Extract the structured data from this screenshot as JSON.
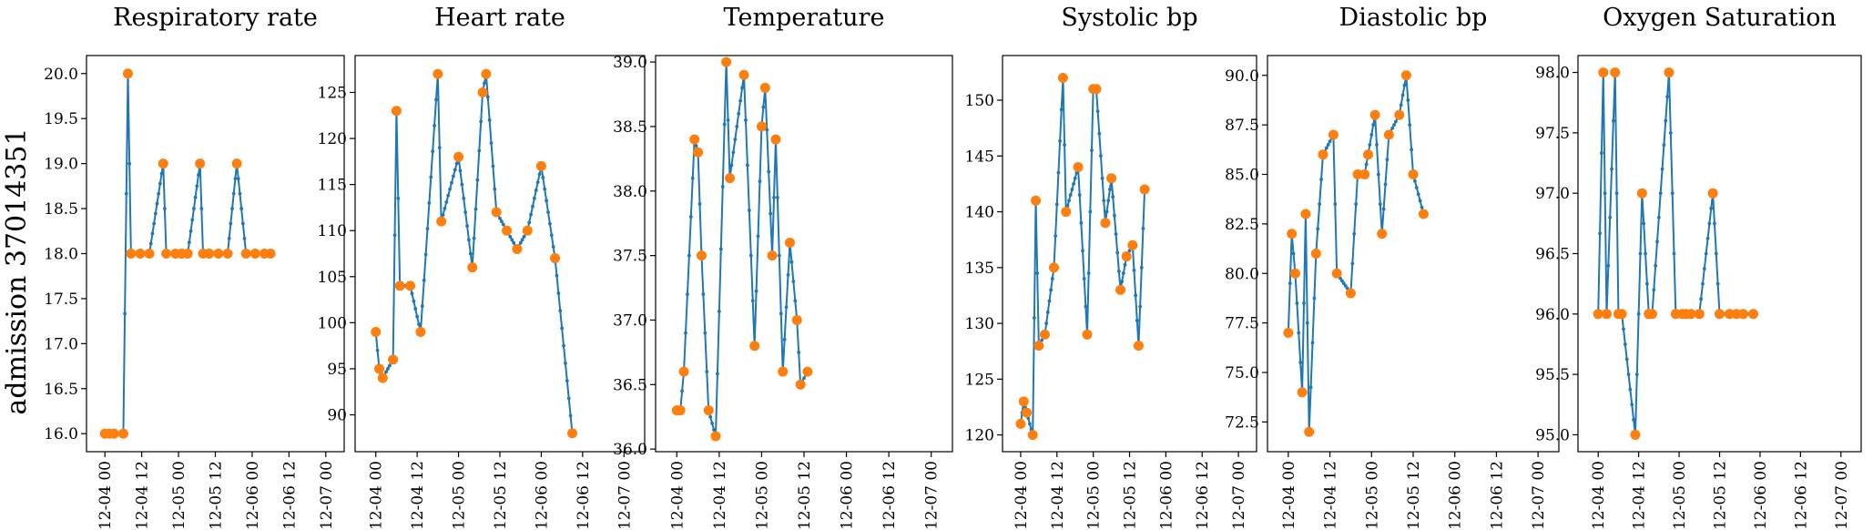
{
  "figure": {
    "row_label": "admission 37014351",
    "colors": {
      "line": "#1f77b4",
      "observed": "#ff7f0e"
    }
  },
  "chart_data": [
    {
      "type": "line",
      "title": "Respiratory rate",
      "x_unit": "hours since 12-04 00",
      "xlim": [
        -6,
        78
      ],
      "x_ticks": [
        0,
        12,
        24,
        36,
        48,
        60,
        72
      ],
      "x_tick_labels": [
        "12-04 00",
        "12-04 12",
        "12-05 00",
        "12-05 12",
        "12-06 00",
        "12-06 12",
        "12-07 00"
      ],
      "ylim": [
        15.8,
        20.2
      ],
      "y_ticks": [
        16.0,
        16.5,
        17.0,
        17.5,
        18.0,
        18.5,
        19.0,
        19.5,
        20.0
      ],
      "y_tick_labels": [
        "16.0",
        "16.5",
        "17.0",
        "17.5",
        "18.0",
        "18.5",
        "19.0",
        "19.5",
        "20.0"
      ],
      "observed": [
        [
          0,
          16
        ],
        [
          1.5,
          16
        ],
        [
          3,
          16
        ],
        [
          6,
          16
        ],
        [
          7.5,
          20
        ],
        [
          8.5,
          18
        ],
        [
          11.5,
          18
        ],
        [
          14.5,
          18
        ],
        [
          19,
          19
        ],
        [
          20,
          18
        ],
        [
          23,
          18
        ],
        [
          25,
          18
        ],
        [
          27,
          18
        ],
        [
          31,
          19
        ],
        [
          32,
          18
        ],
        [
          34,
          18
        ],
        [
          37,
          18
        ],
        [
          40,
          18
        ],
        [
          43,
          19
        ],
        [
          46,
          18
        ],
        [
          49,
          18
        ],
        [
          52,
          18
        ],
        [
          54,
          18
        ]
      ]
    },
    {
      "type": "line",
      "title": "Heart rate",
      "x_unit": "hours since 12-04 00",
      "xlim": [
        -6,
        78
      ],
      "x_ticks": [
        0,
        12,
        24,
        36,
        48,
        60,
        72
      ],
      "x_tick_labels": [
        "12-04 00",
        "12-04 12",
        "12-05 00",
        "12-05 12",
        "12-06 00",
        "12-06 12",
        "12-07 00"
      ],
      "ylim": [
        86,
        129
      ],
      "y_ticks": [
        90,
        95,
        100,
        105,
        110,
        115,
        120,
        125
      ],
      "y_tick_labels": [
        "90",
        "95",
        "100",
        "105",
        "110",
        "115",
        "120",
        "125"
      ],
      "observed": [
        [
          0,
          99
        ],
        [
          1,
          95
        ],
        [
          2,
          94
        ],
        [
          5,
          96
        ],
        [
          6,
          123
        ],
        [
          7,
          104
        ],
        [
          10,
          104
        ],
        [
          13,
          99
        ],
        [
          18,
          127
        ],
        [
          19,
          111
        ],
        [
          24,
          118
        ],
        [
          28,
          106
        ],
        [
          31,
          125
        ],
        [
          32,
          127
        ],
        [
          35,
          112
        ],
        [
          38,
          110
        ],
        [
          41,
          108
        ],
        [
          44,
          110
        ],
        [
          48,
          117
        ],
        [
          52,
          107
        ],
        [
          57,
          88
        ]
      ]
    },
    {
      "type": "line",
      "title": "Temperature",
      "x_unit": "hours since 12-04 00",
      "xlim": [
        -6,
        78
      ],
      "x_ticks": [
        0,
        12,
        24,
        36,
        48,
        60,
        72
      ],
      "x_tick_labels": [
        "12-04 00",
        "12-04 12",
        "12-05 00",
        "12-05 12",
        "12-06 00",
        "12-06 12",
        "12-07 00"
      ],
      "ylim": [
        35.98,
        39.05
      ],
      "y_ticks": [
        36.0,
        36.5,
        37.0,
        37.5,
        38.0,
        38.5,
        39.0
      ],
      "y_tick_labels": [
        "36.0",
        "36.5",
        "37.0",
        "37.5",
        "38.0",
        "38.5",
        "39.0"
      ],
      "observed": [
        [
          0,
          36.3
        ],
        [
          1,
          36.3
        ],
        [
          2,
          36.6
        ],
        [
          5,
          38.4
        ],
        [
          6,
          38.3
        ],
        [
          7,
          37.5
        ],
        [
          9,
          36.3
        ],
        [
          11,
          36.1
        ],
        [
          14,
          39.0
        ],
        [
          15,
          38.1
        ],
        [
          19,
          38.9
        ],
        [
          22,
          36.8
        ],
        [
          24,
          38.5
        ],
        [
          25,
          38.8
        ],
        [
          27,
          37.5
        ],
        [
          28,
          38.4
        ],
        [
          30,
          36.6
        ],
        [
          32,
          37.6
        ],
        [
          34,
          37.0
        ],
        [
          35,
          36.5
        ],
        [
          37,
          36.6
        ]
      ]
    },
    {
      "type": "line",
      "title": "Systolic bp",
      "x_unit": "hours since 12-04 00",
      "xlim": [
        -6,
        78
      ],
      "x_ticks": [
        0,
        12,
        24,
        36,
        48,
        60,
        72
      ],
      "x_tick_labels": [
        "12-04 00",
        "12-04 12",
        "12-05 00",
        "12-05 12",
        "12-06 00",
        "12-06 12",
        "12-07 00"
      ],
      "ylim": [
        118.5,
        154
      ],
      "y_ticks": [
        120,
        125,
        130,
        135,
        140,
        145,
        150
      ],
      "y_tick_labels": [
        "120",
        "125",
        "130",
        "135",
        "140",
        "145",
        "150"
      ],
      "observed": [
        [
          0,
          121
        ],
        [
          1,
          123
        ],
        [
          2,
          122
        ],
        [
          4,
          120
        ],
        [
          5,
          141
        ],
        [
          6,
          128
        ],
        [
          8,
          129
        ],
        [
          11,
          135
        ],
        [
          14,
          152
        ],
        [
          15,
          140
        ],
        [
          19,
          144
        ],
        [
          22,
          129
        ],
        [
          24,
          151
        ],
        [
          25,
          151
        ],
        [
          28,
          139
        ],
        [
          30,
          143
        ],
        [
          33,
          133
        ],
        [
          35,
          136
        ],
        [
          37,
          137
        ],
        [
          39,
          128
        ],
        [
          41,
          142
        ]
      ]
    },
    {
      "type": "line",
      "title": "Diastolic bp",
      "x_unit": "hours since 12-04 00",
      "xlim": [
        -6,
        78
      ],
      "x_ticks": [
        0,
        12,
        24,
        36,
        48,
        60,
        72
      ],
      "x_tick_labels": [
        "12-04 00",
        "12-04 12",
        "12-05 00",
        "12-05 12",
        "12-06 00",
        "12-06 12",
        "12-07 00"
      ],
      "ylim": [
        71,
        91
      ],
      "y_ticks": [
        72.5,
        75.0,
        77.5,
        80.0,
        82.5,
        85.0,
        87.5,
        90.0
      ],
      "y_tick_labels": [
        "72.5",
        "75.0",
        "77.5",
        "80.0",
        "82.5",
        "85.0",
        "87.5",
        "90.0"
      ],
      "observed": [
        [
          0,
          77
        ],
        [
          1,
          82
        ],
        [
          2,
          80
        ],
        [
          4,
          74
        ],
        [
          5,
          83
        ],
        [
          6,
          72
        ],
        [
          8,
          81
        ],
        [
          10,
          86
        ],
        [
          13,
          87
        ],
        [
          14,
          80
        ],
        [
          18,
          79
        ],
        [
          20,
          85
        ],
        [
          22,
          85
        ],
        [
          23,
          86
        ],
        [
          25,
          88
        ],
        [
          27,
          82
        ],
        [
          29,
          87
        ],
        [
          32,
          88
        ],
        [
          34,
          90
        ],
        [
          36,
          85
        ],
        [
          39,
          83
        ]
      ]
    },
    {
      "type": "line",
      "title": "Oxygen Saturation",
      "x_unit": "hours since 12-04 00",
      "xlim": [
        -6,
        78
      ],
      "x_ticks": [
        0,
        12,
        24,
        36,
        48,
        60,
        72
      ],
      "x_tick_labels": [
        "12-04 00",
        "12-04 12",
        "12-05 00",
        "12-05 12",
        "12-06 00",
        "12-06 12",
        "12-07 00"
      ],
      "ylim": [
        94.86,
        98.14
      ],
      "y_ticks": [
        95.0,
        95.5,
        96.0,
        96.5,
        97.0,
        97.5,
        98.0
      ],
      "y_tick_labels": [
        "95.0",
        "95.5",
        "96.0",
        "96.5",
        "97.0",
        "97.5",
        "98.0"
      ],
      "observed": [
        [
          0,
          96
        ],
        [
          1.5,
          98
        ],
        [
          2.5,
          96
        ],
        [
          5,
          98
        ],
        [
          6,
          96
        ],
        [
          7,
          96
        ],
        [
          11,
          95
        ],
        [
          13,
          97
        ],
        [
          15,
          96
        ],
        [
          16,
          96
        ],
        [
          21,
          98
        ],
        [
          23,
          96
        ],
        [
          25,
          96
        ],
        [
          26,
          96
        ],
        [
          27.5,
          96
        ],
        [
          30,
          96
        ],
        [
          34,
          97
        ],
        [
          36,
          96
        ],
        [
          39,
          96
        ],
        [
          41,
          96
        ],
        [
          43,
          96
        ],
        [
          46,
          96
        ]
      ]
    }
  ]
}
